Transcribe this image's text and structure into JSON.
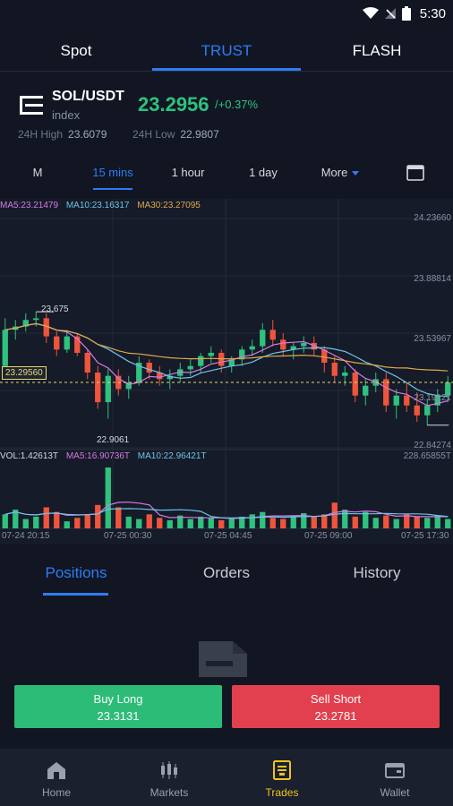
{
  "status_bar": {
    "time": "5:30"
  },
  "mode_tabs": [
    {
      "label": "Spot",
      "active": false
    },
    {
      "label": "TRUST",
      "active": true
    },
    {
      "label": "FLASH",
      "active": false
    }
  ],
  "ticker": {
    "pair": "SOL/USDT",
    "type": "index",
    "price": "23.2956",
    "change": "/+0.37%",
    "high_label": "24H High",
    "high_value": "23.6079",
    "low_label": "24H Low",
    "low_value": "22.9807"
  },
  "intervals": [
    {
      "label": "M",
      "active": false
    },
    {
      "label": "15 mins",
      "active": true
    },
    {
      "label": "1 hour",
      "active": false
    },
    {
      "label": "1 day",
      "active": false
    },
    {
      "label": "More",
      "active": false
    }
  ],
  "chart": {
    "ma_legend": {
      "ma5": "MA5:23.21479",
      "ma10": "MA10:23.16317",
      "ma30": "MA30:23.27095"
    },
    "vol_legend": {
      "vol": "VOL:1.42613T",
      "ma5": "MA5:16.90736T",
      "ma10": "MA10:22.96421T"
    },
    "price_axis": [
      "24.23660",
      "23.88814",
      "23.53967",
      "23.19121",
      "22.84274"
    ],
    "vol_axis_max": "228.65855T",
    "high_mark": "23.675",
    "low_mark": "22.9061",
    "current_price": "23.29560",
    "time_labels": [
      "07-24 20:15",
      "07-25 00:30",
      "07-25 04:45",
      "07-25 09:00",
      "07-25 17:30"
    ],
    "colors": {
      "up": "#2ec27e",
      "down": "#f0553c",
      "ma5": "#d57be6",
      "ma10": "#6fc3ea",
      "ma30": "#e0a84c"
    }
  },
  "chart_data": {
    "type": "candlestick",
    "y_range": [
      22.84274,
      24.2366
    ],
    "price_ticks": [
      24.2366,
      23.88814,
      23.53967,
      23.19121,
      22.84274
    ],
    "candles": [
      [
        23.34,
        23.63,
        23.3,
        23.56
      ],
      [
        23.56,
        23.62,
        23.5,
        23.58
      ],
      [
        23.58,
        23.66,
        23.55,
        23.62
      ],
      [
        23.62,
        23.67,
        23.58,
        23.63
      ],
      [
        23.63,
        23.66,
        23.48,
        23.52
      ],
      [
        23.52,
        23.55,
        23.4,
        23.44
      ],
      [
        23.44,
        23.56,
        23.42,
        23.52
      ],
      [
        23.52,
        23.54,
        23.4,
        23.42
      ],
      [
        23.42,
        23.44,
        23.26,
        23.3
      ],
      [
        23.3,
        23.34,
        23.08,
        23.12
      ],
      [
        23.12,
        23.32,
        23.02,
        23.28
      ],
      [
        23.28,
        23.32,
        23.16,
        23.2
      ],
      [
        23.2,
        23.28,
        23.14,
        23.24
      ],
      [
        23.24,
        23.4,
        23.22,
        23.36
      ],
      [
        23.36,
        23.38,
        23.26,
        23.3
      ],
      [
        23.3,
        23.34,
        23.22,
        23.26
      ],
      [
        23.26,
        23.32,
        23.2,
        23.28
      ],
      [
        23.28,
        23.36,
        23.24,
        23.32
      ],
      [
        23.32,
        23.38,
        23.28,
        23.34
      ],
      [
        23.34,
        23.42,
        23.3,
        23.4
      ],
      [
        23.4,
        23.46,
        23.36,
        23.42
      ],
      [
        23.42,
        23.44,
        23.3,
        23.34
      ],
      [
        23.34,
        23.4,
        23.3,
        23.38
      ],
      [
        23.38,
        23.46,
        23.34,
        23.44
      ],
      [
        23.44,
        23.5,
        23.4,
        23.46
      ],
      [
        23.46,
        23.6,
        23.42,
        23.56
      ],
      [
        23.56,
        23.62,
        23.46,
        23.5
      ],
      [
        23.5,
        23.54,
        23.4,
        23.44
      ],
      [
        23.44,
        23.48,
        23.38,
        23.46
      ],
      [
        23.46,
        23.52,
        23.42,
        23.48
      ],
      [
        23.48,
        23.52,
        23.4,
        23.44
      ],
      [
        23.44,
        23.46,
        23.3,
        23.36
      ],
      [
        23.36,
        23.4,
        23.24,
        23.28
      ],
      [
        23.28,
        23.34,
        23.22,
        23.3
      ],
      [
        23.3,
        23.32,
        23.12,
        23.16
      ],
      [
        23.16,
        23.26,
        23.1,
        23.22
      ],
      [
        23.22,
        23.3,
        23.18,
        23.26
      ],
      [
        23.26,
        23.3,
        23.06,
        23.1
      ],
      [
        23.1,
        23.2,
        23.02,
        23.16
      ],
      [
        23.16,
        23.24,
        23.06,
        23.1
      ],
      [
        23.1,
        23.18,
        23.0,
        23.04
      ],
      [
        23.04,
        23.14,
        22.98,
        23.1
      ],
      [
        23.1,
        23.2,
        23.06,
        23.16
      ],
      [
        23.16,
        23.28,
        23.12,
        23.24
      ]
    ],
    "volumes": [
      12,
      16,
      8,
      10,
      18,
      14,
      6,
      9,
      12,
      20,
      52,
      18,
      10,
      8,
      12,
      9,
      7,
      11,
      8,
      10,
      9,
      7,
      8,
      10,
      12,
      14,
      9,
      8,
      11,
      13,
      10,
      12,
      22,
      16,
      10,
      14,
      9,
      11,
      8,
      12,
      10,
      9,
      11,
      8
    ]
  }
}
